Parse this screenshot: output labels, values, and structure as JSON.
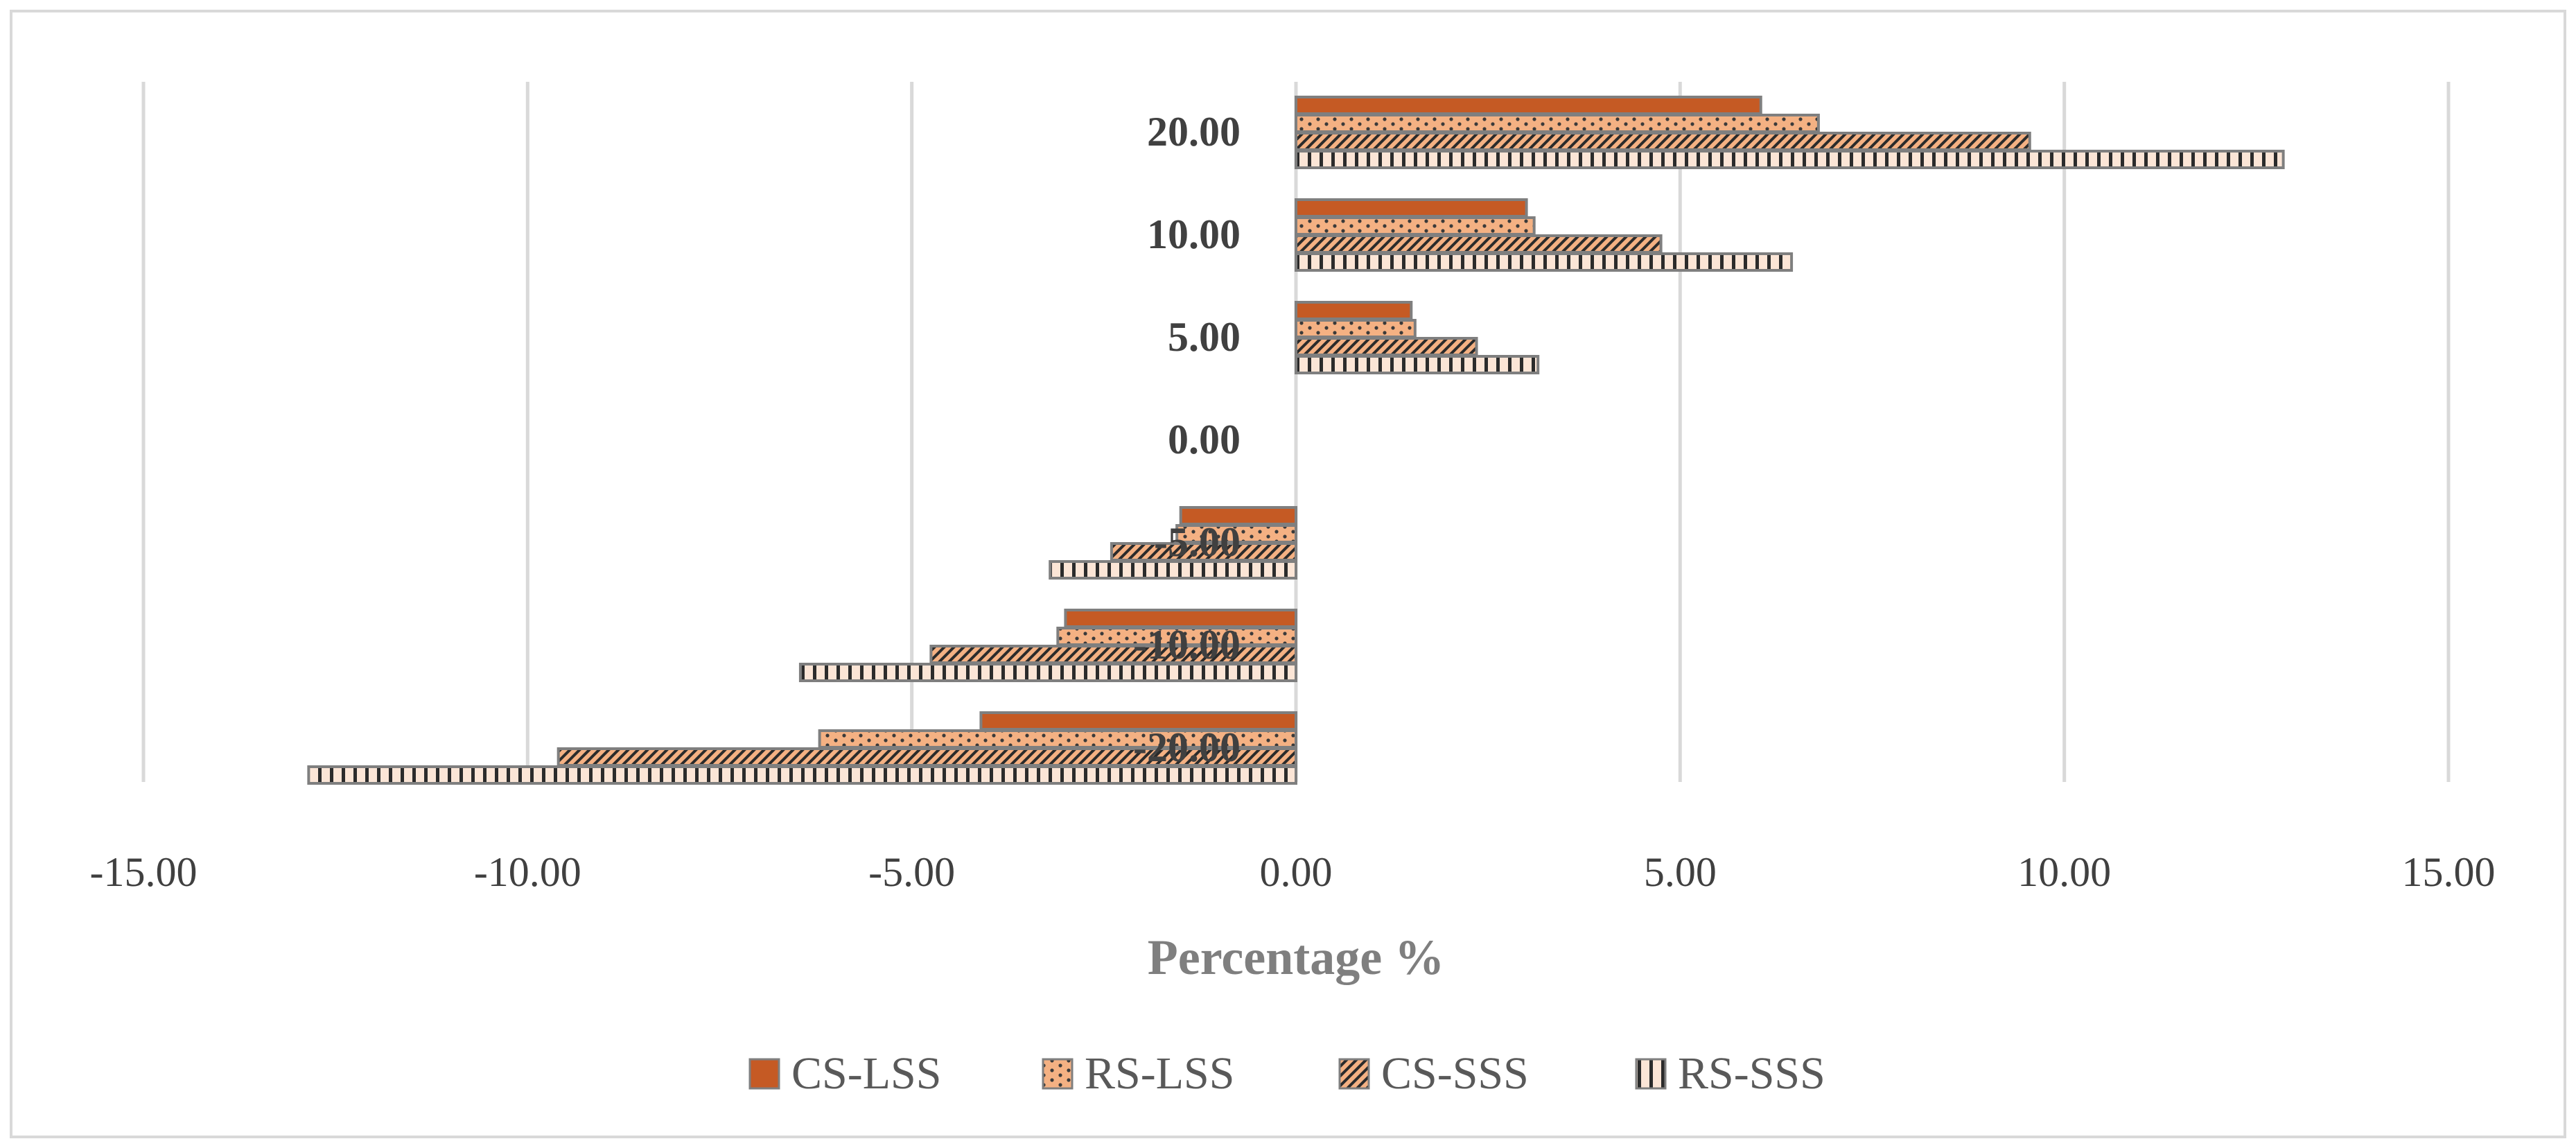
{
  "chart_data": {
    "type": "bar",
    "orientation": "horizontal",
    "title": "",
    "xlabel": "Percentage %",
    "ylabel": "",
    "xlim": [
      -15,
      15
    ],
    "x_ticks": [
      "-15.00",
      "-10.00",
      "-5.00",
      "0.00",
      "5.00",
      "10.00",
      "15.00"
    ],
    "x_tick_values": [
      -15,
      -10,
      -5,
      0,
      5,
      10,
      15
    ],
    "grid": true,
    "legend_position": "bottom",
    "categories": [
      "-20.00",
      "-10.00",
      "-5.00",
      "0.00",
      "5.00",
      "10.00",
      "20.00"
    ],
    "series": [
      {
        "name": "CS-LSS",
        "values": [
          -4.1,
          -3.0,
          -1.5,
          0,
          1.5,
          3.0,
          6.05
        ],
        "color": "#c55a24",
        "pattern": "solid"
      },
      {
        "name": "RS-LSS",
        "values": [
          -6.2,
          -3.1,
          -1.55,
          0,
          1.55,
          3.1,
          6.8
        ],
        "color": "#f4b183",
        "pattern": "dots"
      },
      {
        "name": "CS-SSS",
        "values": [
          -9.6,
          -4.75,
          -2.4,
          0,
          2.35,
          4.75,
          9.55
        ],
        "color": "#f4b183",
        "pattern": "diagonal"
      },
      {
        "name": "RS-SSS",
        "values": [
          -12.85,
          -6.45,
          -3.2,
          0,
          3.15,
          6.45,
          12.85
        ],
        "color": "#fbe5d6",
        "pattern": "vertical-stripes"
      }
    ]
  }
}
